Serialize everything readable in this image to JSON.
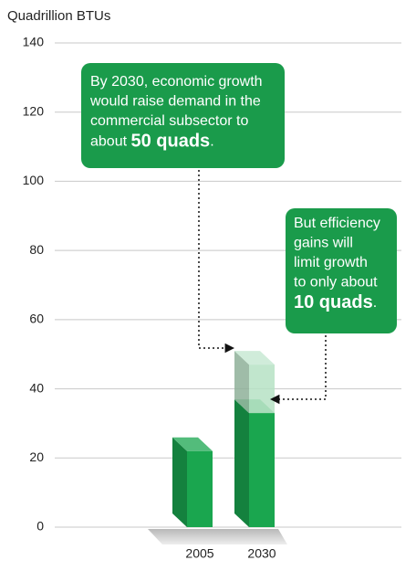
{
  "chart_data": {
    "type": "bar3d",
    "y_label": "Quadrillion BTUs",
    "categories": [
      "2005",
      "2030"
    ],
    "series": [
      {
        "color": "#1aa64f",
        "values": [
          22,
          33
        ]
      },
      {
        "color": "#b6e2c4",
        "values": [
          null,
          14
        ]
      }
    ],
    "ylim": [
      0,
      140
    ],
    "yticks": [
      0,
      20,
      40,
      60,
      80,
      100,
      120,
      140
    ],
    "grid": true,
    "annotations": [
      {
        "lines": [
          "By 2030, economic growth",
          "would raise demand in the",
          "commercial subsector to"
        ],
        "emphasis": [
          "about ",
          "50 quads",
          "."
        ]
      },
      {
        "lines": [
          "But efficiency",
          "gains will",
          "limit growth",
          "to only about"
        ],
        "emphasis": [
          "",
          "10 quads",
          "."
        ]
      }
    ]
  }
}
